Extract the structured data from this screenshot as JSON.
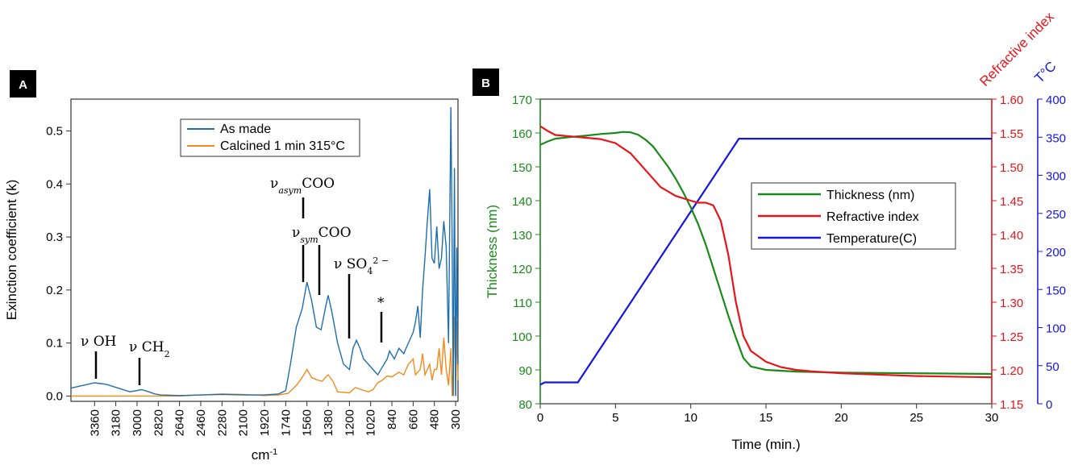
{
  "chart_data": [
    {
      "panel_label": "A",
      "type": "line",
      "xlabel": "cm-1",
      "ylabel": "Exinction coefficient (k)",
      "xlim": [
        3560,
        280
      ],
      "ylim": [
        -0.01,
        0.56
      ],
      "x_ticks": [
        3360,
        3180,
        3000,
        2820,
        2640,
        2460,
        2280,
        2100,
        1920,
        1740,
        1560,
        1380,
        1200,
        1020,
        840,
        660,
        480,
        300
      ],
      "y_ticks": [
        0.0,
        0.1,
        0.2,
        0.3,
        0.4,
        0.5
      ],
      "legend_position": "top-center",
      "annotations": [
        {
          "text": "ν OH",
          "x": 3300
        },
        {
          "text": "ν CH₂",
          "x": 2950
        },
        {
          "text": "ν_asym COO",
          "x": 1560
        },
        {
          "text": "ν_sym COO",
          "x": 1540
        },
        {
          "text": "ν SO₄²⁻",
          "x": 1200
        },
        {
          "text": "*",
          "x": 900
        }
      ],
      "series": [
        {
          "name": "As made",
          "color": "#1f6fae",
          "points": [
            [
              3560,
              0.015
            ],
            [
              3460,
              0.02
            ],
            [
              3360,
              0.025
            ],
            [
              3260,
              0.022
            ],
            [
              3160,
              0.015
            ],
            [
              3060,
              0.008
            ],
            [
              2960,
              0.012
            ],
            [
              2900,
              0.008
            ],
            [
              2850,
              0.004
            ],
            [
              2800,
              0.002
            ],
            [
              2640,
              0.001
            ],
            [
              2460,
              0.002
            ],
            [
              2280,
              0.003
            ],
            [
              2100,
              0.002
            ],
            [
              1920,
              0.002
            ],
            [
              1800,
              0.004
            ],
            [
              1740,
              0.01
            ],
            [
              1700,
              0.06
            ],
            [
              1650,
              0.13
            ],
            [
              1600,
              0.165
            ],
            [
              1560,
              0.215
            ],
            [
              1520,
              0.18
            ],
            [
              1480,
              0.13
            ],
            [
              1440,
              0.125
            ],
            [
              1400,
              0.17
            ],
            [
              1380,
              0.19
            ],
            [
              1350,
              0.16
            ],
            [
              1300,
              0.1
            ],
            [
              1250,
              0.06
            ],
            [
              1200,
              0.05
            ],
            [
              1170,
              0.09
            ],
            [
              1140,
              0.105
            ],
            [
              1110,
              0.09
            ],
            [
              1080,
              0.07
            ],
            [
              1040,
              0.06
            ],
            [
              1000,
              0.05
            ],
            [
              960,
              0.04
            ],
            [
              920,
              0.055
            ],
            [
              880,
              0.07
            ],
            [
              860,
              0.085
            ],
            [
              820,
              0.07
            ],
            [
              780,
              0.09
            ],
            [
              740,
              0.08
            ],
            [
              700,
              0.1
            ],
            [
              660,
              0.12
            ],
            [
              640,
              0.14
            ],
            [
              620,
              0.17
            ],
            [
              600,
              0.11
            ],
            [
              580,
              0.2
            ],
            [
              560,
              0.26
            ],
            [
              540,
              0.33
            ],
            [
              520,
              0.39
            ],
            [
              500,
              0.26
            ],
            [
              480,
              0.25
            ],
            [
              460,
              0.32
            ],
            [
              440,
              0.24
            ],
            [
              420,
              0.26
            ],
            [
              400,
              0.33
            ],
            [
              380,
              0.28
            ],
            [
              360,
              0.1
            ],
            [
              340,
              0.545
            ],
            [
              330,
              0.3
            ],
            [
              320,
              0.0
            ],
            [
              310,
              0.43
            ],
            [
              300,
              0.0
            ],
            [
              290,
              0.28
            ],
            [
              280,
              0.06
            ]
          ]
        },
        {
          "name": "Calcined 1 min 315°C",
          "color": "#f28a1c",
          "points": [
            [
              3560,
              0.0
            ],
            [
              2640,
              0.0
            ],
            [
              2460,
              0.002
            ],
            [
              2280,
              0.004
            ],
            [
              2100,
              0.003
            ],
            [
              1920,
              0.001
            ],
            [
              1800,
              0.002
            ],
            [
              1720,
              0.005
            ],
            [
              1650,
              0.02
            ],
            [
              1600,
              0.035
            ],
            [
              1560,
              0.05
            ],
            [
              1520,
              0.035
            ],
            [
              1470,
              0.03
            ],
            [
              1430,
              0.028
            ],
            [
              1400,
              0.036
            ],
            [
              1380,
              0.04
            ],
            [
              1340,
              0.028
            ],
            [
              1300,
              0.008
            ],
            [
              1200,
              0.006
            ],
            [
              1150,
              0.016
            ],
            [
              1100,
              0.012
            ],
            [
              1040,
              0.008
            ],
            [
              1000,
              0.012
            ],
            [
              960,
              0.025
            ],
            [
              920,
              0.03
            ],
            [
              880,
              0.038
            ],
            [
              840,
              0.036
            ],
            [
              780,
              0.045
            ],
            [
              740,
              0.04
            ],
            [
              700,
              0.06
            ],
            [
              660,
              0.07
            ],
            [
              640,
              0.04
            ],
            [
              600,
              0.05
            ],
            [
              580,
              0.08
            ],
            [
              560,
              0.04
            ],
            [
              540,
              0.05
            ],
            [
              520,
              0.06
            ],
            [
              500,
              0.03
            ],
            [
              480,
              0.05
            ],
            [
              460,
              0.05
            ],
            [
              440,
              0.09
            ],
            [
              420,
              0.04
            ],
            [
              400,
              0.11
            ],
            [
              380,
              0.05
            ],
            [
              360,
              0.02
            ],
            [
              340,
              0.09
            ],
            [
              330,
              0.0
            ],
            [
              320,
              0.06
            ],
            [
              310,
              0.15
            ],
            [
              300,
              0.0
            ],
            [
              290,
              0.14
            ],
            [
              280,
              0.03
            ]
          ]
        }
      ]
    },
    {
      "panel_label": "B",
      "type": "line",
      "xlabel": "Time (min.)",
      "ylabel_left": "Thickness (nm)",
      "ylabel_right1": "Refractive index",
      "ylabel_right2": "T°C",
      "xlim": [
        0,
        30
      ],
      "ylim_left": [
        80,
        170
      ],
      "ylim_right1": [
        1.15,
        1.6
      ],
      "ylim_right2": [
        0,
        400
      ],
      "x_ticks": [
        0,
        5,
        10,
        15,
        20,
        25,
        30
      ],
      "y_ticks_left": [
        80,
        90,
        100,
        110,
        120,
        130,
        140,
        150,
        160,
        170
      ],
      "y_ticks_right1": [
        "1.15",
        "1.20",
        "1.25",
        "1.30",
        "1.35",
        "1.40",
        "1.45",
        "1.50",
        "1.55",
        "1.60"
      ],
      "y_ticks_right2": [
        0,
        50,
        100,
        150,
        200,
        250,
        300,
        350,
        400
      ],
      "legend_position": "center-right",
      "series": [
        {
          "name": "Thickness (nm)",
          "color": "#1a8a1a",
          "axis": "left",
          "points": [
            [
              0,
              156.5
            ],
            [
              0.5,
              157.5
            ],
            [
              1,
              158.3
            ],
            [
              2,
              158.8
            ],
            [
              3,
              159.2
            ],
            [
              4,
              159.7
            ],
            [
              5,
              160
            ],
            [
              5.5,
              160.3
            ],
            [
              6,
              160.2
            ],
            [
              6.5,
              159.5
            ],
            [
              7,
              158
            ],
            [
              7.5,
              156
            ],
            [
              8,
              153
            ],
            [
              8.5,
              150
            ],
            [
              9,
              146.5
            ],
            [
              9.5,
              142.5
            ],
            [
              10,
              138
            ],
            [
              10.5,
              133
            ],
            [
              11,
              127
            ],
            [
              11.5,
              120
            ],
            [
              12,
              113
            ],
            [
              12.5,
              106
            ],
            [
              13,
              99.5
            ],
            [
              13.5,
              93.5
            ],
            [
              14,
              91
            ],
            [
              15,
              90
            ],
            [
              17,
              89.5
            ],
            [
              20,
              89.2
            ],
            [
              25,
              89
            ],
            [
              30,
              88.8
            ]
          ]
        },
        {
          "name": "Refractive index",
          "color": "#e8141a",
          "axis": "right1",
          "points": [
            [
              0,
              1.56
            ],
            [
              0.5,
              1.553
            ],
            [
              1,
              1.547
            ],
            [
              2,
              1.545
            ],
            [
              3,
              1.543
            ],
            [
              4,
              1.541
            ],
            [
              5,
              1.535
            ],
            [
              6,
              1.52
            ],
            [
              7,
              1.495
            ],
            [
              8,
              1.47
            ],
            [
              9,
              1.457
            ],
            [
              10,
              1.45
            ],
            [
              10.5,
              1.447
            ],
            [
              11,
              1.447
            ],
            [
              11.5,
              1.443
            ],
            [
              12,
              1.42
            ],
            [
              12.5,
              1.37
            ],
            [
              13,
              1.3
            ],
            [
              13.5,
              1.25
            ],
            [
              14,
              1.228
            ],
            [
              15,
              1.212
            ],
            [
              16,
              1.204
            ],
            [
              17,
              1.2
            ],
            [
              18,
              1.198
            ],
            [
              20,
              1.195
            ],
            [
              25,
              1.191
            ],
            [
              30,
              1.189
            ]
          ]
        },
        {
          "name": "Temperature(C)",
          "color": "#1515e0",
          "axis": "right2",
          "points": [
            [
              0,
              25
            ],
            [
              0.3,
              28
            ],
            [
              2.5,
              28
            ],
            [
              13.2,
              348
            ],
            [
              30,
              348
            ]
          ]
        }
      ]
    }
  ]
}
